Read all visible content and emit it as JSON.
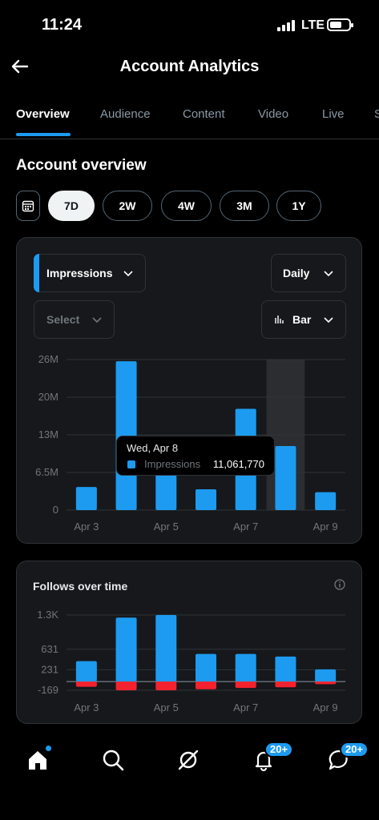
{
  "status_bar": {
    "time": "11:24",
    "network": "LTE"
  },
  "header": {
    "title": "Account Analytics"
  },
  "tabs": [
    {
      "label": "Overview",
      "active": true
    },
    {
      "label": "Audience"
    },
    {
      "label": "Content"
    },
    {
      "label": "Video"
    },
    {
      "label": "Live"
    },
    {
      "label": "S"
    }
  ],
  "section_title": "Account overview",
  "ranges": [
    {
      "label": "7D",
      "active": true
    },
    {
      "label": "2W"
    },
    {
      "label": "4W"
    },
    {
      "label": "3M"
    },
    {
      "label": "1Y"
    }
  ],
  "impressions_card": {
    "metric": "Impressions",
    "interval": "Daily",
    "compare_placeholder": "Select",
    "chart_type": "Bar",
    "tooltip": {
      "date": "Wed, Apr 8",
      "label": "Impressions",
      "value": "11,061,770"
    }
  },
  "follows_card": {
    "title": "Follows over time"
  },
  "nav": {
    "notifications_badge": "20+",
    "messages_badge": "20+"
  },
  "colors": {
    "accent": "#1d9bf0",
    "negative": "#f4212e",
    "card": "#16181c"
  },
  "chart_data": [
    {
      "type": "bar",
      "title": "Impressions",
      "categories": [
        "Apr 3",
        "Apr 4",
        "Apr 5",
        "Apr 6",
        "Apr 7",
        "Apr 8",
        "Apr 9"
      ],
      "x_tick_labels": [
        "Apr 3",
        "Apr 5",
        "Apr 7",
        "Apr 9"
      ],
      "series": [
        {
          "name": "Impressions",
          "values": [
            4000000,
            25700000,
            6500000,
            3600000,
            17500000,
            11061770,
            3100000
          ]
        }
      ],
      "y_tick_labels": [
        "26M",
        "20M",
        "13M",
        "6.5M",
        "0"
      ],
      "y_ticks": [
        26000000,
        19500000,
        13000000,
        6500000,
        0
      ],
      "ylim": [
        0,
        26000000
      ],
      "highlighted_category": "Apr 8",
      "grid": true
    },
    {
      "type": "bar",
      "title": "Follows over time",
      "categories": [
        "Apr 3",
        "Apr 4",
        "Apr 5",
        "Apr 6",
        "Apr 7",
        "Apr 8",
        "Apr 9"
      ],
      "x_tick_labels": [
        "Apr 3",
        "Apr 5",
        "Apr 7",
        "Apr 9"
      ],
      "series": [
        {
          "values": [
            400,
            1250,
            1300,
            540,
            540,
            490,
            240
          ]
        },
        {
          "values": [
            -100,
            -169,
            -169,
            -150,
            -125,
            -110,
            -50
          ]
        }
      ],
      "y_tick_labels": [
        "1.3K",
        "631",
        "231",
        "-169"
      ],
      "y_ticks": [
        1300,
        631,
        231,
        -169
      ],
      "ylim": [
        -169,
        1300
      ],
      "grid": true
    }
  ]
}
